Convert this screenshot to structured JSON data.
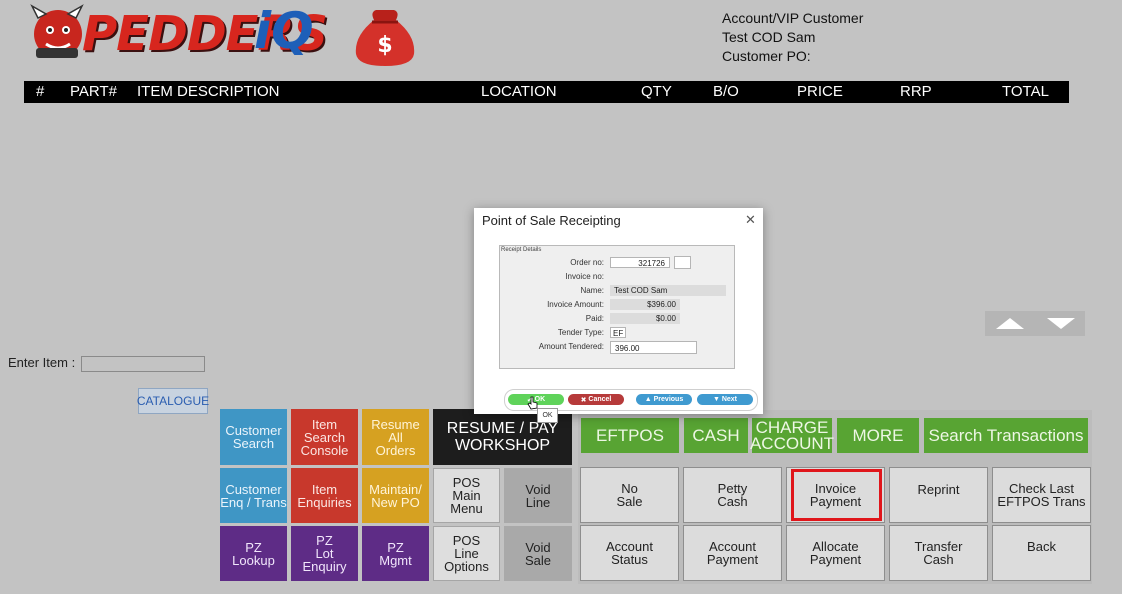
{
  "brand": {
    "name_part1": "PEDDERS",
    "name_part2": "iQ"
  },
  "customer": {
    "account": "Account/VIP Customer",
    "name": "Test COD Sam",
    "po_label": "Customer PO:"
  },
  "columns": [
    "#",
    "PART#",
    "ITEM DESCRIPTION",
    "LOCATION",
    "QTY",
    "B/O",
    "PRICE",
    "RRP",
    "TOTAL"
  ],
  "enter_item": {
    "label": "Enter Item :",
    "value": ""
  },
  "catalogue_label": "CATALOGUE",
  "tiles": {
    "customer_search": "Customer\nSearch",
    "item_search_console": "Item\nSearch\nConsole",
    "resume_all_orders": "Resume\nAll\nOrders",
    "resume_pay_workshop": "RESUME / PAY\nWORKSHOP",
    "customer_enq": "Customer\nEnq / Trans",
    "item_enquiries": "Item\nEnquiries",
    "maintain_new_po": "Maintain/\nNew PO",
    "pos_main_menu": "POS\nMain\nMenu",
    "void_line": "Void\nLine",
    "pz_lookup": "PZ\nLookup",
    "pz_lot_enquiry": "PZ\nLot\nEnquiry",
    "pz_mgmt": "PZ\nMgmt",
    "pos_line_options": "POS\nLine\nOptions",
    "void_sale": "Void\nSale"
  },
  "payment_tiles": {
    "eftpos": "EFTPOS",
    "cash": "CASH",
    "charge_account": "CHARGE\nACCOUNT",
    "more": "MORE",
    "search_transactions": "Search Transactions",
    "no_sale": "No\nSale",
    "petty_cash": "Petty\nCash",
    "invoice_payment": "Invoice\nPayment",
    "reprint": "Reprint",
    "check_last_eftpos": "Check Last\nEFTPOS Trans",
    "account_status": "Account\nStatus",
    "account_payment": "Account\nPayment",
    "allocate_payment": "Allocate\nPayment",
    "transfer_cash": "Transfer\nCash",
    "back": "Back"
  },
  "modal": {
    "title": "Point of Sale Receipting",
    "close": "✕",
    "legend": "Receipt Details",
    "fields": {
      "order_no_label": "Order no:",
      "order_no": "321726",
      "invoice_no_label": "Invoice no:",
      "name_label": "Name:",
      "name": "Test COD Sam",
      "invoice_amount_label": "Invoice Amount:",
      "invoice_amount": "$396.00",
      "paid_label": "Paid:",
      "paid": "$0.00",
      "tender_type_label": "Tender Type:",
      "tender_type": "EF",
      "amount_tendered_label": "Amount Tendered:",
      "amount_tendered": "396.00"
    },
    "buttons": {
      "ok": "OK",
      "cancel": "Cancel",
      "previous": "Previous",
      "next": "Next"
    },
    "tooltip": "OK"
  },
  "colors": {
    "header": "#000000",
    "highlight": "#e0161b",
    "ok_green": "#5fd35a",
    "cancel_red": "#b63a3a",
    "nav_blue": "#3f9ad0"
  }
}
